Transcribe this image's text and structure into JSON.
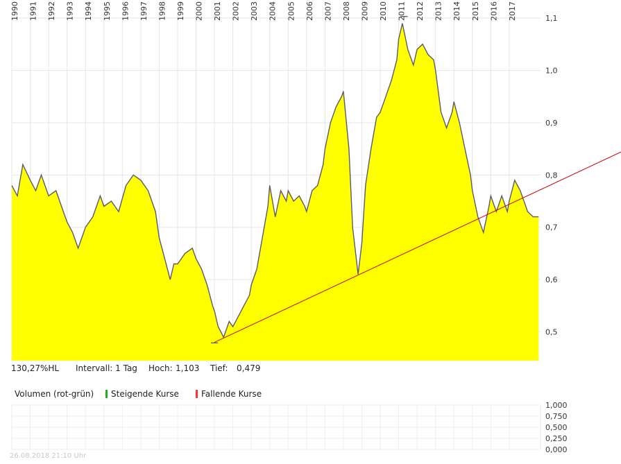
{
  "chart_data": [
    {
      "type": "area",
      "title": "",
      "xlabel": "",
      "ylabel": "",
      "x_ticks": [
        "1990",
        "1991",
        "1992",
        "1993",
        "1994",
        "1995",
        "1996",
        "1997",
        "1998",
        "1999",
        "2000",
        "2001",
        "2002",
        "2003",
        "2004",
        "2005",
        "2006",
        "2007",
        "2008",
        "2009",
        "2010",
        "2011",
        "2012",
        "2013",
        "2014",
        "2015",
        "2016",
        "2017"
      ],
      "y_ticks": [
        "0,5",
        "0,6",
        "0,7",
        "0,8",
        "0,9",
        "1,0",
        "1,1"
      ],
      "ylim": [
        0.445,
        1.108
      ],
      "xlim": [
        1990.0,
        2018.7
      ],
      "grid": true,
      "fill_color": "#ffff00",
      "line_color": "#5a5a6e",
      "series": [
        {
          "x": [
            1990.0,
            1990.3,
            1990.6,
            1991.0,
            1991.3,
            1991.6,
            1992.0,
            1992.4,
            1992.8,
            1993.0,
            1993.3,
            1993.6,
            1994.0,
            1994.4,
            1994.8,
            1995.0,
            1995.4,
            1995.8,
            1996.2,
            1996.6,
            1997.0,
            1997.4,
            1997.8,
            1998.0,
            1998.3,
            1998.6,
            1998.8,
            1999.0,
            1999.4,
            1999.8,
            2000.0,
            2000.3,
            2000.6,
            2000.9,
            2001.0,
            2001.2,
            2001.5,
            2001.8,
            2002.0,
            2002.3,
            2002.6,
            2002.9,
            2003.0,
            2003.3,
            2003.6,
            2003.9,
            2004.0,
            2004.3,
            2004.6,
            2004.9,
            2005.0,
            2005.3,
            2005.6,
            2005.9,
            2006.0,
            2006.3,
            2006.6,
            2006.9,
            2007.0,
            2007.3,
            2007.6,
            2007.9,
            2008.0,
            2008.3,
            2008.5,
            2008.8,
            2009.0,
            2009.2,
            2009.5,
            2009.8,
            2010.0,
            2010.3,
            2010.6,
            2010.9,
            2011.0,
            2011.2,
            2011.5,
            2011.8,
            2012.0,
            2012.3,
            2012.6,
            2012.9,
            2013.0,
            2013.3,
            2013.6,
            2013.9,
            2014.0,
            2014.3,
            2014.6,
            2014.9,
            2015.0,
            2015.3,
            2015.6,
            2015.9,
            2016.0,
            2016.3,
            2016.6,
            2016.9,
            2017.0,
            2017.3,
            2017.6,
            2017.9,
            2018.0,
            2018.3,
            2018.6
          ],
          "y": [
            0.78,
            0.76,
            0.82,
            0.79,
            0.77,
            0.8,
            0.76,
            0.77,
            0.73,
            0.71,
            0.69,
            0.66,
            0.7,
            0.72,
            0.76,
            0.74,
            0.75,
            0.73,
            0.78,
            0.8,
            0.79,
            0.77,
            0.73,
            0.68,
            0.64,
            0.6,
            0.63,
            0.63,
            0.65,
            0.66,
            0.64,
            0.62,
            0.59,
            0.55,
            0.54,
            0.51,
            0.49,
            0.52,
            0.51,
            0.53,
            0.55,
            0.57,
            0.59,
            0.62,
            0.68,
            0.74,
            0.78,
            0.72,
            0.77,
            0.75,
            0.77,
            0.75,
            0.76,
            0.74,
            0.73,
            0.77,
            0.78,
            0.82,
            0.85,
            0.9,
            0.93,
            0.95,
            0.96,
            0.85,
            0.7,
            0.61,
            0.67,
            0.78,
            0.85,
            0.91,
            0.92,
            0.95,
            0.98,
            1.02,
            1.06,
            1.09,
            1.04,
            1.01,
            1.04,
            1.05,
            1.03,
            1.02,
            1.0,
            0.92,
            0.89,
            0.92,
            0.94,
            0.9,
            0.85,
            0.8,
            0.77,
            0.72,
            0.69,
            0.74,
            0.76,
            0.73,
            0.76,
            0.73,
            0.75,
            0.79,
            0.77,
            0.74,
            0.73,
            0.72,
            0.72
          ]
        }
      ],
      "trendline": {
        "from": {
          "x": 2001.0,
          "y": 0.48
        },
        "to": {
          "x": 2018.7,
          "y": 0.775
        },
        "color": "#cc0000"
      },
      "markers": [
        {
          "x": 2001.0,
          "y": 0.479
        },
        {
          "x": 2011.3,
          "y": 1.103
        }
      ]
    },
    {
      "type": "bar",
      "title": "",
      "y_ticks": [
        "0,000",
        "0,250",
        "0,500",
        "0,750",
        "1,000"
      ],
      "ylim": [
        0,
        1
      ],
      "grid": true,
      "series": []
    }
  ],
  "info": {
    "range": "130,27%HL",
    "interval": "Intervall: 1 Tag",
    "high_label": "Hoch:",
    "high_value": "1,103",
    "low_label": "Tief:",
    "low_value": "0,479"
  },
  "volume": {
    "title": "Volumen (rot-grün)",
    "rising_label": "Steigende Kurse",
    "falling_label": "Fallende Kurse",
    "rising_color": "#22aa22",
    "falling_color": "#ff3333"
  },
  "footer": "26.08.2018 21:10 Uhr"
}
